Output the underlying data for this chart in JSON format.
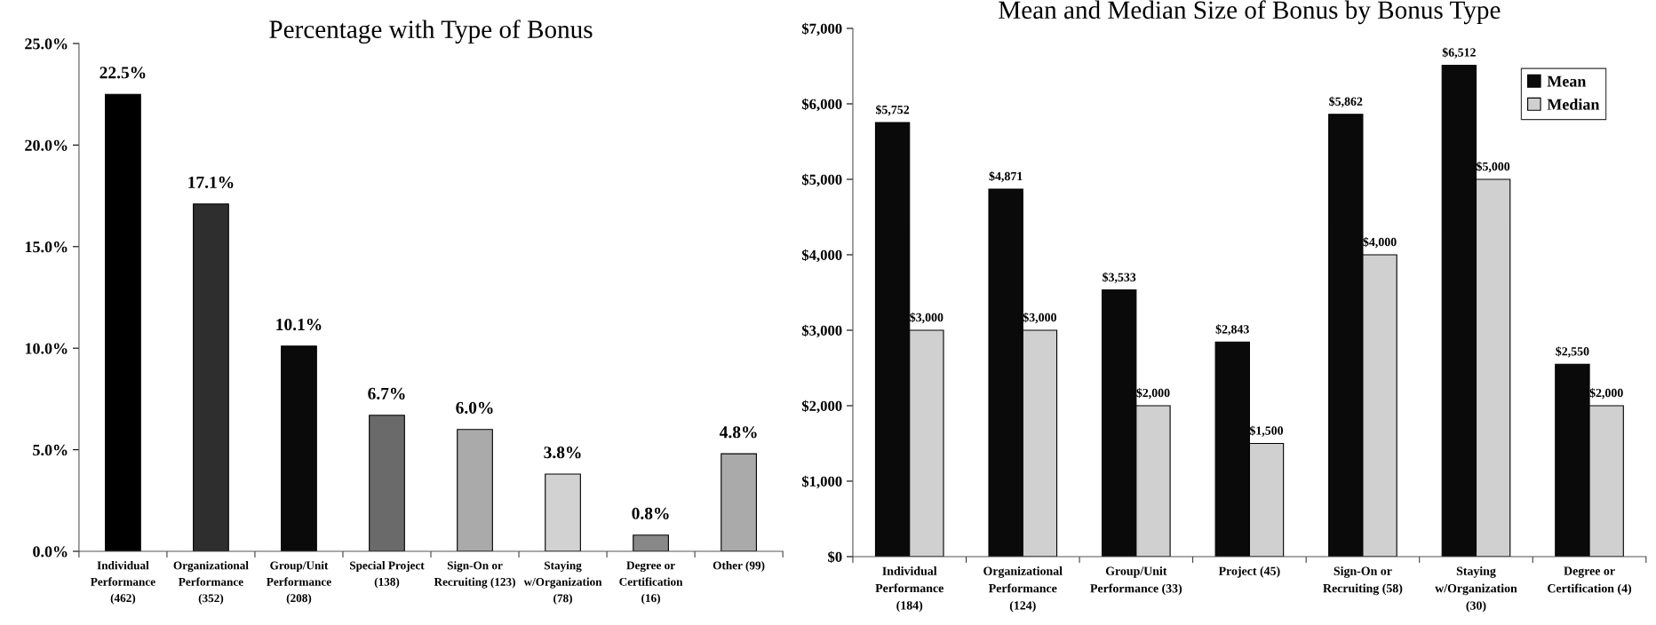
{
  "chart_data": [
    {
      "type": "bar",
      "title": "Percentage with Type of Bonus",
      "categories": [
        "Individual\nPerformance\n(462)",
        "Organizational\nPerformance\n(352)",
        "Group/Unit\nPerformance\n(208)",
        "Special Project\n(138)",
        "Sign-On or\nRecruiting (123)",
        "Staying\nw/Organization\n(78)",
        "Degree or\nCertification\n(16)",
        "Other (99)"
      ],
      "values": [
        22.5,
        17.1,
        10.1,
        6.7,
        6.0,
        3.8,
        0.8,
        4.8
      ],
      "colors": [
        "#000000",
        "#2e2e2e",
        "#0a0a0a",
        "#6a6a6a",
        "#aaaaaa",
        "#d2d2d2",
        "#888888",
        "#aaaaaa"
      ],
      "value_labels": [
        "22.5%",
        "17.1%",
        "10.1%",
        "6.7%",
        "6.0%",
        "3.8%",
        "0.8%",
        "4.8%"
      ],
      "ylim": [
        0,
        25
      ],
      "yticks": [
        {
          "value": 0,
          "label": "0.0%"
        },
        {
          "value": 5,
          "label": "5.0%"
        },
        {
          "value": 10,
          "label": "10.0%"
        },
        {
          "value": 15,
          "label": "15.0%"
        },
        {
          "value": 20,
          "label": "20.0%"
        },
        {
          "value": 25,
          "label": "25.0%"
        }
      ]
    },
    {
      "type": "bar",
      "title": "Mean and Median Size of Bonus by Bonus Type",
      "categories": [
        "Individual\nPerformance\n(184)",
        "Organizational\nPerformance\n(124)",
        "Group/Unit\nPerformance (33)",
        "Project (45)",
        "Sign-On or\nRecruiting (58)",
        "Staying\nw/Organization\n(30)",
        "Degree or\nCertification (4)"
      ],
      "series": [
        {
          "name": "Mean",
          "color": "#0a0a0a",
          "values": [
            5752,
            4871,
            3533,
            2843,
            5862,
            6512,
            2550
          ],
          "value_labels": [
            "$5,752",
            "$4,871",
            "$3,533",
            "$2,843",
            "$5,862",
            "$6,512",
            "$2,550"
          ]
        },
        {
          "name": "Median",
          "color": "#d0d0d0",
          "values": [
            3000,
            3000,
            2000,
            1500,
            4000,
            5000,
            2000
          ],
          "value_labels": [
            "$3,000",
            "$3,000",
            "$2,000",
            "$1,500",
            "$4,000",
            "$5,000",
            "$2,000"
          ]
        }
      ],
      "ylim": [
        0,
        7000
      ],
      "yticks": [
        {
          "value": 0,
          "label": "$0"
        },
        {
          "value": 1000,
          "label": "$1,000"
        },
        {
          "value": 2000,
          "label": "$2,000"
        },
        {
          "value": 3000,
          "label": "$3,000"
        },
        {
          "value": 4000,
          "label": "$4,000"
        },
        {
          "value": 5000,
          "label": "$5,000"
        },
        {
          "value": 6000,
          "label": "$6,000"
        },
        {
          "value": 7000,
          "label": "$7,000"
        }
      ],
      "legend": "top right"
    }
  ]
}
